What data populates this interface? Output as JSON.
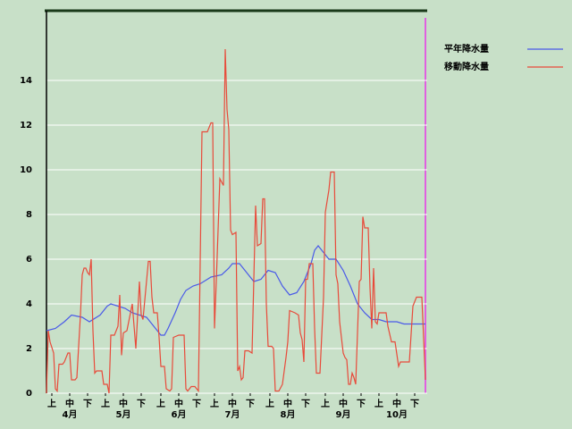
{
  "chart_data": {
    "type": "line",
    "xlim": [
      0,
      213
    ],
    "ylim": [
      0,
      17.12
    ],
    "yticks": [
      0,
      2,
      4,
      6,
      8,
      10,
      12,
      14
    ],
    "grid": true,
    "legend": "right",
    "xticks": [
      {
        "value": 3,
        "label": "上"
      },
      {
        "value": 13,
        "label": "中"
      },
      {
        "value": 23,
        "label": "下"
      },
      {
        "value": 33,
        "label": "上"
      },
      {
        "value": 43,
        "label": "中"
      },
      {
        "value": 53,
        "label": "下"
      },
      {
        "value": 64,
        "label": "上"
      },
      {
        "value": 74,
        "label": "中"
      },
      {
        "value": 84,
        "label": "下"
      },
      {
        "value": 94,
        "label": "上"
      },
      {
        "value": 104,
        "label": "中"
      },
      {
        "value": 114,
        "label": "下"
      },
      {
        "value": 125,
        "label": "上"
      },
      {
        "value": 135,
        "label": "中"
      },
      {
        "value": 145,
        "label": "下"
      },
      {
        "value": 156,
        "label": "上"
      },
      {
        "value": 166,
        "label": "中"
      },
      {
        "value": 176,
        "label": "下"
      },
      {
        "value": 186,
        "label": "上"
      },
      {
        "value": 196,
        "label": "中"
      },
      {
        "value": 206,
        "label": "下"
      }
    ],
    "month_labels": [
      {
        "value": 13,
        "label": "4月"
      },
      {
        "value": 43,
        "label": "5月"
      },
      {
        "value": 74,
        "label": "6月"
      },
      {
        "value": 104,
        "label": "7月"
      },
      {
        "value": 135,
        "label": "8月"
      },
      {
        "value": 166,
        "label": "9月"
      },
      {
        "value": 196,
        "label": "10月"
      }
    ],
    "series": [
      {
        "name": "平年降水量",
        "color": "#4a5ae8",
        "x": [
          0,
          5,
          10,
          14,
          20,
          24,
          30,
          34,
          36,
          40,
          44,
          48,
          52,
          56,
          58,
          62,
          64,
          66,
          68,
          72,
          75,
          78,
          82,
          86,
          90,
          92,
          98,
          102,
          104,
          108,
          112,
          116,
          120,
          124,
          128,
          132,
          136,
          140,
          144,
          148,
          150,
          152,
          155,
          158,
          162,
          166,
          170,
          174,
          178,
          182,
          186,
          190,
          196,
          200,
          212
        ],
        "values": [
          2.8,
          2.9,
          3.2,
          3.5,
          3.4,
          3.2,
          3.5,
          3.9,
          4.0,
          3.9,
          3.8,
          3.6,
          3.5,
          3.4,
          3.2,
          2.8,
          2.6,
          2.6,
          2.9,
          3.6,
          4.2,
          4.6,
          4.8,
          4.9,
          5.1,
          5.2,
          5.3,
          5.6,
          5.8,
          5.8,
          5.4,
          5.0,
          5.1,
          5.5,
          5.4,
          4.8,
          4.4,
          4.5,
          5.0,
          5.8,
          6.4,
          6.6,
          6.3,
          6.0,
          6.0,
          5.5,
          4.8,
          4.0,
          3.6,
          3.3,
          3.3,
          3.2,
          3.2,
          3.1,
          3.1
        ]
      },
      {
        "name": "移動降水量",
        "color": "#e84a3a",
        "x": [
          0,
          1,
          2,
          4,
          5,
          6,
          7,
          9,
          10,
          12,
          13,
          14,
          16,
          17,
          19,
          20,
          21,
          22,
          23,
          24,
          25,
          26,
          27,
          28,
          31,
          32,
          34,
          35,
          36,
          38,
          40,
          41,
          42,
          43,
          45,
          48,
          49,
          50,
          51,
          52,
          53,
          54,
          57,
          58,
          59,
          60,
          62,
          63,
          64,
          66,
          67,
          69,
          70,
          71,
          74,
          77,
          78,
          79,
          81,
          83,
          85,
          87,
          90,
          92,
          93,
          94,
          95,
          97,
          99,
          100,
          101,
          102,
          103,
          104,
          106,
          107,
          108,
          109,
          110,
          111,
          113,
          115,
          117,
          118,
          120,
          121,
          122,
          123,
          124,
          126,
          127,
          128,
          130,
          132,
          134,
          135,
          136,
          139,
          141,
          142,
          143,
          144,
          145,
          146,
          147,
          149,
          150,
          151,
          153,
          155,
          156,
          158,
          159,
          161,
          162,
          163,
          164,
          166,
          167,
          168,
          169,
          170,
          171,
          172,
          173,
          175,
          176,
          177,
          178,
          180,
          181,
          182,
          183,
          184,
          185,
          186,
          190,
          191,
          193,
          195,
          197,
          198,
          203,
          205,
          206,
          207,
          210,
          212
        ],
        "values": [
          0,
          2.8,
          2.3,
          1.8,
          0.2,
          0.1,
          1.3,
          1.3,
          1.4,
          1.8,
          1.8,
          0.6,
          0.6,
          0.7,
          3.5,
          5.3,
          5.6,
          5.6,
          5.4,
          5.3,
          6.0,
          2.8,
          0.9,
          1.0,
          1.0,
          0.4,
          0.4,
          0.0,
          2.6,
          2.6,
          3.0,
          4.4,
          1.7,
          2.7,
          2.8,
          4.0,
          3.0,
          2.0,
          3.5,
          5.0,
          3.5,
          3.3,
          5.9,
          5.9,
          4.3,
          3.6,
          3.6,
          2.5,
          1.2,
          1.2,
          0.2,
          0.1,
          0.2,
          2.5,
          2.6,
          2.6,
          0.2,
          0.1,
          0.3,
          0.3,
          0.1,
          11.7,
          11.7,
          12.1,
          12.1,
          2.9,
          5.0,
          9.6,
          9.3,
          15.4,
          12.7,
          11.8,
          7.3,
          7.1,
          7.2,
          1.0,
          1.2,
          0.6,
          0.7,
          1.9,
          1.9,
          1.8,
          8.4,
          6.6,
          6.7,
          8.7,
          8.7,
          4.0,
          2.1,
          2.1,
          2.0,
          0.1,
          0.1,
          0.4,
          1.6,
          2.3,
          3.7,
          3.6,
          3.5,
          2.7,
          2.4,
          1.4,
          5.1,
          5.1,
          5.8,
          5.8,
          2.9,
          0.9,
          0.9,
          4.3,
          8.1,
          9.1,
          9.9,
          9.9,
          5.3,
          4.9,
          3.2,
          1.8,
          1.6,
          1.5,
          0.4,
          0.4,
          0.9,
          0.7,
          0.4,
          5.0,
          5.1,
          7.9,
          7.4,
          7.4,
          4.7,
          2.9,
          5.6,
          3.2,
          3.1,
          3.6,
          3.6,
          3.0,
          2.3,
          2.3,
          1.2,
          1.4,
          1.4,
          3.9,
          4.1,
          4.3,
          4.3,
          0.6
        ]
      }
    ]
  }
}
